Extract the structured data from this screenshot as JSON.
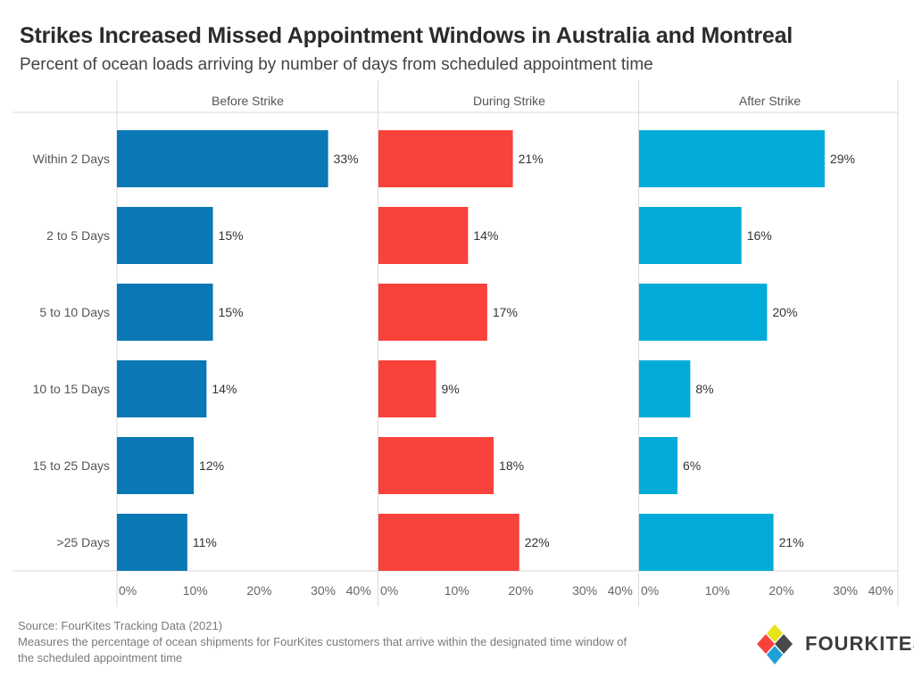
{
  "header": {
    "title": "Strikes Increased Missed Appointment Windows in Australia and Montreal",
    "subtitle": "Percent of ocean loads arriving by number of days from scheduled appointment time"
  },
  "chart_data": {
    "type": "bar",
    "orientation": "horizontal",
    "title": "Strikes Increased Missed Appointment Windows in Australia and Montreal",
    "subtitle": "Percent of ocean loads arriving by number of days from scheduled appointment time",
    "categories": [
      "Within 2 Days",
      "2 to 5 Days",
      "5 to 10 Days",
      "10 to 15 Days",
      "15 to 25 Days",
      ">25 Days"
    ],
    "xlim": [
      0,
      40
    ],
    "xticks": [
      0,
      10,
      20,
      30,
      40
    ],
    "tick_suffix": "%",
    "panels": [
      {
        "name": "Before Strike",
        "color": "#0a78b4",
        "values": [
          33,
          15,
          15,
          14,
          12,
          11
        ]
      },
      {
        "name": "During Strike",
        "color": "#f8423b",
        "values": [
          21,
          14,
          17,
          9,
          18,
          22
        ]
      },
      {
        "name": "After Strike",
        "color": "#03acd8",
        "values": [
          29,
          16,
          20,
          8,
          6,
          21
        ]
      }
    ]
  },
  "footer": {
    "source": "Source: FourKites Tracking Data (2021)",
    "note_line1": "Measures the percentage of ocean shipments for FourKites customers that arrive within the designated time window of",
    "note_line2": "the scheduled appointment time"
  },
  "logo": {
    "text": "FOURKITES",
    "colors": [
      "#e8e21b",
      "#47494b",
      "#1fa0d8",
      "#f8423b"
    ]
  }
}
